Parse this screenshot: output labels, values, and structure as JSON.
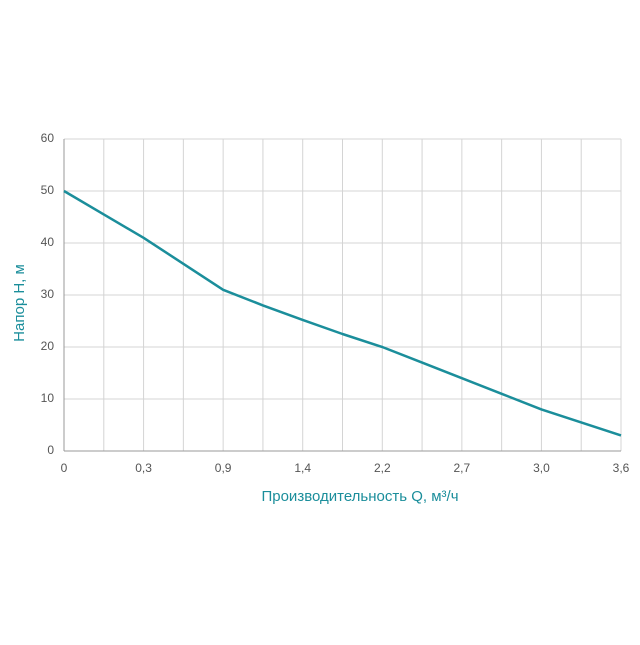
{
  "chart_data": {
    "type": "line",
    "x_label": "Производительность Q, м³/ч",
    "y_label": "Напор H, м",
    "categories": [
      "0",
      null,
      "0,3",
      null,
      "0,9",
      null,
      "1,4",
      null,
      "2,2",
      null,
      "2,7",
      null,
      "3,0",
      null,
      "3,6"
    ],
    "values": [
      50,
      45.5,
      41,
      36,
      31,
      28,
      25.2,
      22.5,
      20,
      17,
      14,
      11,
      8,
      5.5,
      3
    ],
    "color": "#1b8e9b",
    "ylim": [
      0,
      60
    ],
    "yticks": [
      0,
      10,
      20,
      30,
      40,
      50,
      60
    ],
    "grid": true
  }
}
